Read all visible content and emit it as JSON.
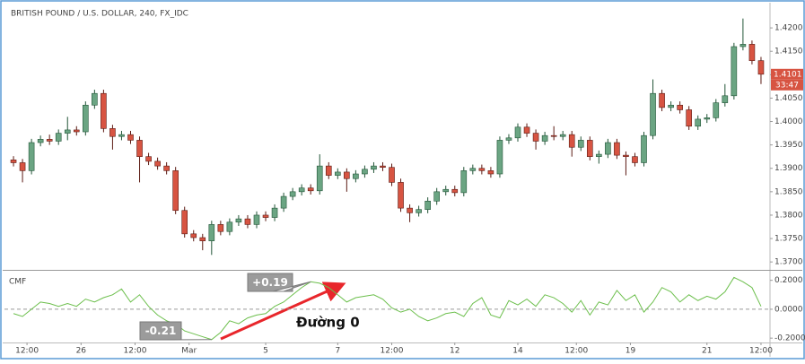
{
  "chart_data": [
    {
      "type": "candlestick",
      "title": "BRITISH POUND / U.S. DOLLAR, 240, FX_IDC",
      "up_color": "#6ba583",
      "down_color": "#d75442",
      "xlim": [
        -1,
        84
      ],
      "ylim": [
        1.3685,
        1.425
      ],
      "yticks": [
        {
          "value": 1.42,
          "label": "1.4200"
        },
        {
          "value": 1.415,
          "label": "1.4150"
        },
        {
          "value": 1.41,
          "label": "1.4100"
        },
        {
          "value": 1.405,
          "label": "1.4050"
        },
        {
          "value": 1.4,
          "label": "1.4000"
        },
        {
          "value": 1.395,
          "label": "1.3950"
        },
        {
          "value": 1.39,
          "label": "1.3900"
        },
        {
          "value": 1.385,
          "label": "1.3850"
        },
        {
          "value": 1.38,
          "label": "1.3800"
        },
        {
          "value": 1.375,
          "label": "1.3750"
        },
        {
          "value": 1.37,
          "label": "1.3700"
        }
      ],
      "open": [
        1.3918,
        1.3912,
        1.3895,
        1.3955,
        1.3962,
        1.3958,
        1.3975,
        1.3982,
        1.3978,
        1.4035,
        1.406,
        1.3985,
        1.3968,
        1.3972,
        1.396,
        1.3925,
        1.3915,
        1.3905,
        1.3895,
        1.381,
        1.376,
        1.3752,
        1.3745,
        1.378,
        1.3765,
        1.3785,
        1.3792,
        1.378,
        1.38,
        1.3795,
        1.3815,
        1.384,
        1.385,
        1.3858,
        1.3852,
        1.3905,
        1.3885,
        1.3892,
        1.3878,
        1.3888,
        1.3898,
        1.3905,
        1.3902,
        1.387,
        1.3815,
        1.3805,
        1.3812,
        1.383,
        1.385,
        1.3855,
        1.3848,
        1.3895,
        1.39,
        1.3895,
        1.3888,
        1.396,
        1.3965,
        1.3988,
        1.3975,
        1.3958,
        1.397,
        1.3968,
        1.3972,
        1.3945,
        1.396,
        1.3925,
        1.393,
        1.3955,
        1.3928,
        1.3925,
        1.3912,
        1.397,
        1.406,
        1.403,
        1.4035,
        1.4025,
        1.399,
        1.4005,
        1.4008,
        1.404,
        1.4055,
        1.416,
        1.4165,
        1.413
      ],
      "high": [
        1.3926,
        1.392,
        1.3963,
        1.397,
        1.3972,
        1.3983,
        1.401,
        1.399,
        1.4043,
        1.4068,
        1.4068,
        1.3993,
        1.398,
        1.398,
        1.3968,
        1.3933,
        1.3923,
        1.3913,
        1.3903,
        1.3818,
        1.3768,
        1.376,
        1.3788,
        1.3788,
        1.3793,
        1.38,
        1.38,
        1.3808,
        1.3808,
        1.3823,
        1.3848,
        1.3858,
        1.3866,
        1.3866,
        1.393,
        1.3913,
        1.39,
        1.39,
        1.3896,
        1.3906,
        1.3913,
        1.3913,
        1.391,
        1.3878,
        1.3823,
        1.382,
        1.3838,
        1.3858,
        1.3863,
        1.3863,
        1.3903,
        1.3908,
        1.3908,
        1.3903,
        1.3968,
        1.3973,
        1.3996,
        1.3996,
        1.3983,
        1.3978,
        1.399,
        1.398,
        1.398,
        1.3968,
        1.3968,
        1.3938,
        1.3963,
        1.3963,
        1.3936,
        1.3933,
        1.3978,
        1.409,
        1.4068,
        1.4043,
        1.4043,
        1.4033,
        1.4013,
        1.4016,
        1.4048,
        1.408,
        1.4168,
        1.422,
        1.4173,
        1.4138
      ],
      "low": [
        1.3904,
        1.387,
        1.3887,
        1.3947,
        1.395,
        1.395,
        1.396,
        1.397,
        1.397,
        1.4027,
        1.3977,
        1.394,
        1.396,
        1.3952,
        1.387,
        1.3907,
        1.3897,
        1.3887,
        1.3802,
        1.3752,
        1.3744,
        1.3725,
        1.3715,
        1.3757,
        1.3757,
        1.3777,
        1.3772,
        1.3772,
        1.3787,
        1.3787,
        1.3807,
        1.3832,
        1.3842,
        1.3844,
        1.3844,
        1.3877,
        1.3877,
        1.385,
        1.387,
        1.388,
        1.389,
        1.3894,
        1.3862,
        1.3807,
        1.3785,
        1.3797,
        1.3804,
        1.3822,
        1.3842,
        1.384,
        1.384,
        1.3887,
        1.3887,
        1.388,
        1.388,
        1.3952,
        1.3957,
        1.3967,
        1.394,
        1.395,
        1.396,
        1.396,
        1.3925,
        1.3937,
        1.3917,
        1.391,
        1.3922,
        1.392,
        1.3885,
        1.3904,
        1.3904,
        1.3962,
        1.4022,
        1.4022,
        1.4017,
        1.3982,
        1.3982,
        1.3997,
        1.4,
        1.4032,
        1.4047,
        1.4152,
        1.4122,
        1.408
      ],
      "close": [
        1.3912,
        1.3895,
        1.3955,
        1.3962,
        1.3958,
        1.3975,
        1.3982,
        1.3978,
        1.4035,
        1.406,
        1.3985,
        1.3968,
        1.3972,
        1.396,
        1.3925,
        1.3915,
        1.3905,
        1.3895,
        1.381,
        1.376,
        1.3752,
        1.3745,
        1.378,
        1.3765,
        1.3785,
        1.3792,
        1.378,
        1.38,
        1.3795,
        1.3815,
        1.384,
        1.385,
        1.3858,
        1.3852,
        1.3905,
        1.3885,
        1.3892,
        1.3878,
        1.3888,
        1.3898,
        1.3905,
        1.3902,
        1.387,
        1.3815,
        1.3805,
        1.3812,
        1.383,
        1.385,
        1.3855,
        1.3848,
        1.3895,
        1.39,
        1.3895,
        1.3888,
        1.396,
        1.3965,
        1.3988,
        1.3975,
        1.3958,
        1.397,
        1.3968,
        1.3972,
        1.3945,
        1.396,
        1.3925,
        1.393,
        1.3955,
        1.3928,
        1.3925,
        1.3912,
        1.397,
        1.406,
        1.403,
        1.4035,
        1.4025,
        1.399,
        1.4005,
        1.4008,
        1.404,
        1.4055,
        1.416,
        1.4165,
        1.413,
        1.4101
      ],
      "price_tag": {
        "value": 1.4101,
        "label": "1.4101"
      },
      "countdown": "33:47"
    },
    {
      "type": "line",
      "title": "CMF",
      "color": "#6cbf4c",
      "xlim": [
        -1,
        84
      ],
      "ylim": [
        -0.23,
        0.26
      ],
      "zero_line": true,
      "yticks": [
        {
          "value": 0.2,
          "label": "0.2000"
        },
        {
          "value": 0,
          "label": "0.0000"
        },
        {
          "value": -0.2,
          "label": "-0.2000"
        }
      ],
      "xticks": [
        {
          "value": 1.5,
          "label": "12:00"
        },
        {
          "value": 7.5,
          "label": "26"
        },
        {
          "value": 13.5,
          "label": "12:00"
        },
        {
          "value": 19.5,
          "label": "Mar"
        },
        {
          "value": 28,
          "label": "5"
        },
        {
          "value": 36,
          "label": "7"
        },
        {
          "value": 42,
          "label": "12:00"
        },
        {
          "value": 49,
          "label": "12"
        },
        {
          "value": 56,
          "label": "14"
        },
        {
          "value": 62.5,
          "label": "12:00"
        },
        {
          "value": 68.5,
          "label": "19"
        },
        {
          "value": 77,
          "label": "21"
        },
        {
          "value": 83,
          "label": "12:00"
        }
      ],
      "values": [
        -0.03,
        -0.05,
        0,
        0.05,
        0.04,
        0.02,
        0.04,
        0.02,
        0.07,
        0.05,
        0.08,
        0.1,
        0.14,
        0.05,
        0.1,
        0.02,
        -0.04,
        -0.08,
        -0.1,
        -0.15,
        -0.17,
        -0.19,
        -0.21,
        -0.16,
        -0.08,
        -0.1,
        -0.06,
        -0.04,
        -0.03,
        0.02,
        0.05,
        0.1,
        0.15,
        0.19,
        0.18,
        0.15,
        0.1,
        0.05,
        0.08,
        0.09,
        0.1,
        0.07,
        0.01,
        -0.02,
        0,
        -0.05,
        -0.08,
        -0.06,
        -0.03,
        -0.02,
        -0.05,
        0.04,
        0.08,
        -0.04,
        -0.06,
        0.06,
        0.03,
        0.07,
        0.02,
        0.1,
        0.08,
        0.04,
        -0.02,
        0.06,
        -0.04,
        0.05,
        0.03,
        0.13,
        0.06,
        0.1,
        -0.02,
        0.05,
        0.15,
        0.12,
        0.05,
        0.1,
        0.06,
        0.09,
        0.07,
        0.12,
        0.22,
        0.19,
        0.15,
        0.02
      ],
      "annotations": [
        {
          "text": "+0.19"
        },
        {
          "text": "-0.21"
        },
        {
          "text": "Đường 0"
        }
      ]
    }
  ]
}
